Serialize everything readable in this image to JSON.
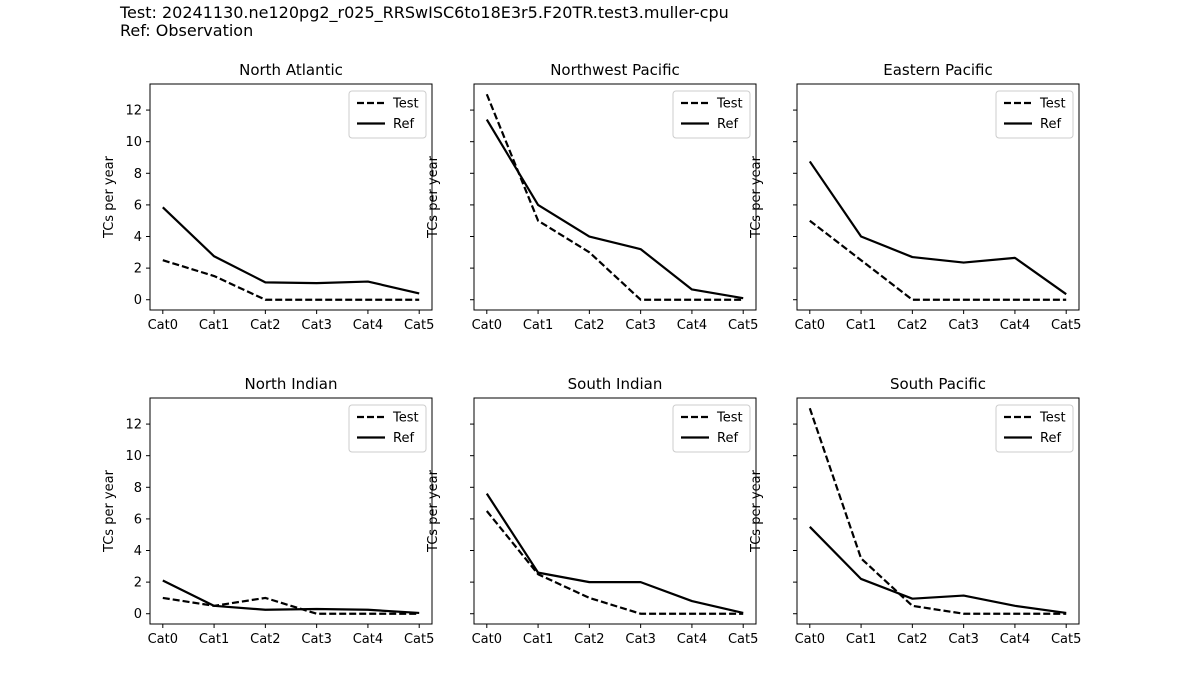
{
  "header": {
    "test_line": "Test: 20241130.ne120pg2_r025_RRSwISC6to18E3r5.F20TR.test3.muller-cpu",
    "ref_line": "Ref: Observation"
  },
  "chart_data": [
    {
      "type": "line",
      "title": "North Atlantic",
      "ylabel": "TCs per year",
      "categories": [
        "Cat0",
        "Cat1",
        "Cat2",
        "Cat3",
        "Cat4",
        "Cat5"
      ],
      "ylim": [
        -0.65,
        13.65
      ],
      "yticks": [
        0,
        2,
        4,
        6,
        8,
        10,
        12
      ],
      "show_ytick_labels": true,
      "legend": "top-right",
      "series": [
        {
          "name": "Test",
          "style": "dashed",
          "color": "#000000",
          "values": [
            2.5,
            1.5,
            0,
            0,
            0,
            0
          ]
        },
        {
          "name": "Ref",
          "style": "solid",
          "color": "#000000",
          "values": [
            5.85,
            2.75,
            1.1,
            1.05,
            1.15,
            0.4
          ]
        }
      ]
    },
    {
      "type": "line",
      "title": "Northwest Pacific",
      "ylabel": "TCs per year",
      "categories": [
        "Cat0",
        "Cat1",
        "Cat2",
        "Cat3",
        "Cat4",
        "Cat5"
      ],
      "ylim": [
        -0.65,
        13.65
      ],
      "yticks": [
        0,
        2,
        4,
        6,
        8,
        10,
        12
      ],
      "show_ytick_labels": false,
      "legend": "top-right",
      "series": [
        {
          "name": "Test",
          "style": "dashed",
          "color": "#000000",
          "values": [
            13,
            5,
            3,
            0,
            0,
            0
          ]
        },
        {
          "name": "Ref",
          "style": "solid",
          "color": "#000000",
          "values": [
            11.4,
            6,
            4,
            3.2,
            0.65,
            0.1
          ]
        }
      ]
    },
    {
      "type": "line",
      "title": "Eastern Pacific",
      "ylabel": "TCs per year",
      "categories": [
        "Cat0",
        "Cat1",
        "Cat2",
        "Cat3",
        "Cat4",
        "Cat5"
      ],
      "ylim": [
        -0.65,
        13.65
      ],
      "yticks": [
        0,
        2,
        4,
        6,
        8,
        10,
        12
      ],
      "show_ytick_labels": false,
      "legend": "top-right",
      "series": [
        {
          "name": "Test",
          "style": "dashed",
          "color": "#000000",
          "values": [
            5,
            2.5,
            0,
            0,
            0,
            0
          ]
        },
        {
          "name": "Ref",
          "style": "solid",
          "color": "#000000",
          "values": [
            8.75,
            4,
            2.7,
            2.35,
            2.65,
            0.35
          ]
        }
      ]
    },
    {
      "type": "line",
      "title": "North Indian",
      "ylabel": "TCs per year",
      "categories": [
        "Cat0",
        "Cat1",
        "Cat2",
        "Cat3",
        "Cat4",
        "Cat5"
      ],
      "ylim": [
        -0.65,
        13.65
      ],
      "yticks": [
        0,
        2,
        4,
        6,
        8,
        10,
        12
      ],
      "show_ytick_labels": true,
      "legend": "top-right",
      "series": [
        {
          "name": "Test",
          "style": "dashed",
          "color": "#000000",
          "values": [
            1,
            0.5,
            1,
            0,
            0,
            0
          ]
        },
        {
          "name": "Ref",
          "style": "solid",
          "color": "#000000",
          "values": [
            2.1,
            0.5,
            0.25,
            0.3,
            0.25,
            0.05
          ]
        }
      ]
    },
    {
      "type": "line",
      "title": "South Indian",
      "ylabel": "TCs per year",
      "categories": [
        "Cat0",
        "Cat1",
        "Cat2",
        "Cat3",
        "Cat4",
        "Cat5"
      ],
      "ylim": [
        -0.65,
        13.65
      ],
      "yticks": [
        0,
        2,
        4,
        6,
        8,
        10,
        12
      ],
      "show_ytick_labels": false,
      "legend": "top-right",
      "series": [
        {
          "name": "Test",
          "style": "dashed",
          "color": "#000000",
          "values": [
            6.5,
            2.5,
            1,
            0,
            0,
            0
          ]
        },
        {
          "name": "Ref",
          "style": "solid",
          "color": "#000000",
          "values": [
            7.6,
            2.6,
            2,
            2,
            0.8,
            0.05
          ]
        }
      ]
    },
    {
      "type": "line",
      "title": "South Pacific",
      "ylabel": "TCs per year",
      "categories": [
        "Cat0",
        "Cat1",
        "Cat2",
        "Cat3",
        "Cat4",
        "Cat5"
      ],
      "ylim": [
        -0.65,
        13.65
      ],
      "yticks": [
        0,
        2,
        4,
        6,
        8,
        10,
        12
      ],
      "show_ytick_labels": false,
      "legend": "top-right",
      "series": [
        {
          "name": "Test",
          "style": "dashed",
          "color": "#000000",
          "values": [
            13,
            3.5,
            0.5,
            0,
            0,
            0
          ]
        },
        {
          "name": "Ref",
          "style": "solid",
          "color": "#000000",
          "values": [
            5.5,
            2.2,
            0.95,
            1.15,
            0.5,
            0.05
          ]
        }
      ]
    }
  ]
}
